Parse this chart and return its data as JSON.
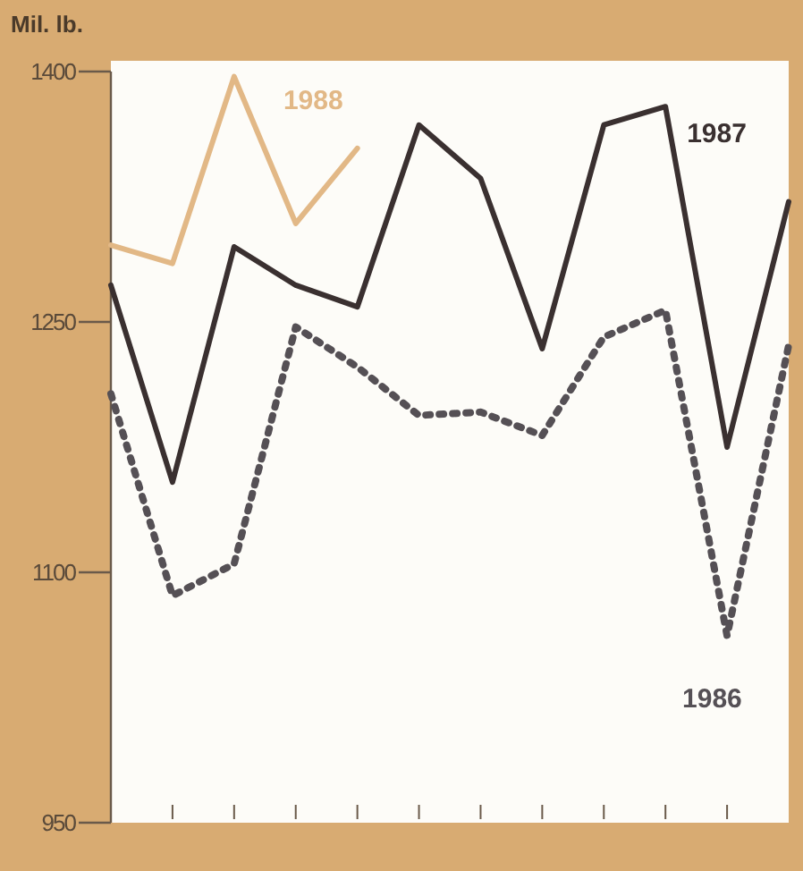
{
  "chart_data": {
    "type": "line",
    "ylabel": "Mil. lb.",
    "categories": [
      null,
      null,
      null,
      null,
      null,
      null,
      null,
      null,
      null,
      null,
      null,
      null
    ],
    "ylim": [
      950,
      1400
    ],
    "yticks": [
      950,
      1100,
      1250,
      1400
    ],
    "grid": false,
    "marker": "none",
    "series": [
      {
        "name": "1988",
        "color": "#e2b886",
        "line_style": "solid",
        "values": [
          1296,
          1285,
          1397,
          1309,
          1354,
          null,
          null,
          null,
          null,
          null,
          null,
          null
        ]
      },
      {
        "name": "1987",
        "color": "#3a3030",
        "line_style": "solid",
        "values": [
          1272,
          1154,
          1295,
          1272,
          1259,
          1368,
          1336,
          1234,
          1368,
          1379,
          1175,
          1322
        ]
      },
      {
        "name": "1986",
        "color": "#555055",
        "line_style": "dotted",
        "values": [
          1207,
          1086,
          1105,
          1247,
          1223,
          1194,
          1196,
          1182,
          1241,
          1257,
          1062,
          1236
        ]
      }
    ]
  }
}
